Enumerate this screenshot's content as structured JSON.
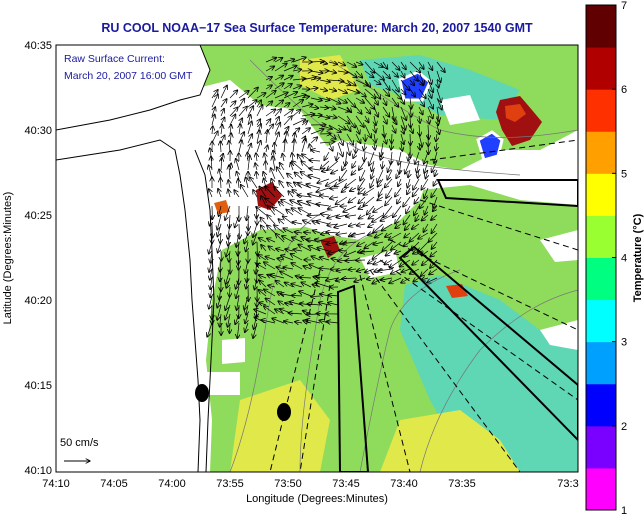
{
  "title": "RU COOL  NOAA−17 Sea Surface Temperature:  March 20, 2007 1540 GMT",
  "annotation": {
    "line1": "Raw Surface Current:",
    "line2": "March 20, 2007 16:00 GMT"
  },
  "scale_label": "50 cm/s",
  "x_axis": {
    "label": "Longitude (Degrees:Minutes)",
    "ticks": [
      "74:10",
      "74:05",
      "74:00",
      "73:55",
      "73:50",
      "73:45",
      "73:40",
      "73:35",
      "73:3"
    ]
  },
  "y_axis": {
    "label": "Latitude (Degrees:Minutes)",
    "ticks": [
      "40:35",
      "40:30",
      "40:25",
      "40:20",
      "40:15",
      "40:10"
    ]
  },
  "colorbar": {
    "label": "Temperature (°C)",
    "ticks": [
      "7",
      "6",
      "5",
      "4",
      "3",
      "2",
      "1"
    ],
    "range": [
      1,
      7
    ],
    "colors": [
      "#ff00ff",
      "#7a00ff",
      "#0000ff",
      "#00a0ff",
      "#00ffff",
      "#00ff80",
      "#9aff30",
      "#ffff00",
      "#ffa000",
      "#ff3000",
      "#b00000",
      "#600000"
    ]
  },
  "colors": {
    "sst_green": "#8fdb5c",
    "sst_cyan": "#5fd6b4",
    "sst_yellow": "#e0e84a",
    "land": "#ffffff",
    "title_blue": "#1a1aa0"
  }
}
